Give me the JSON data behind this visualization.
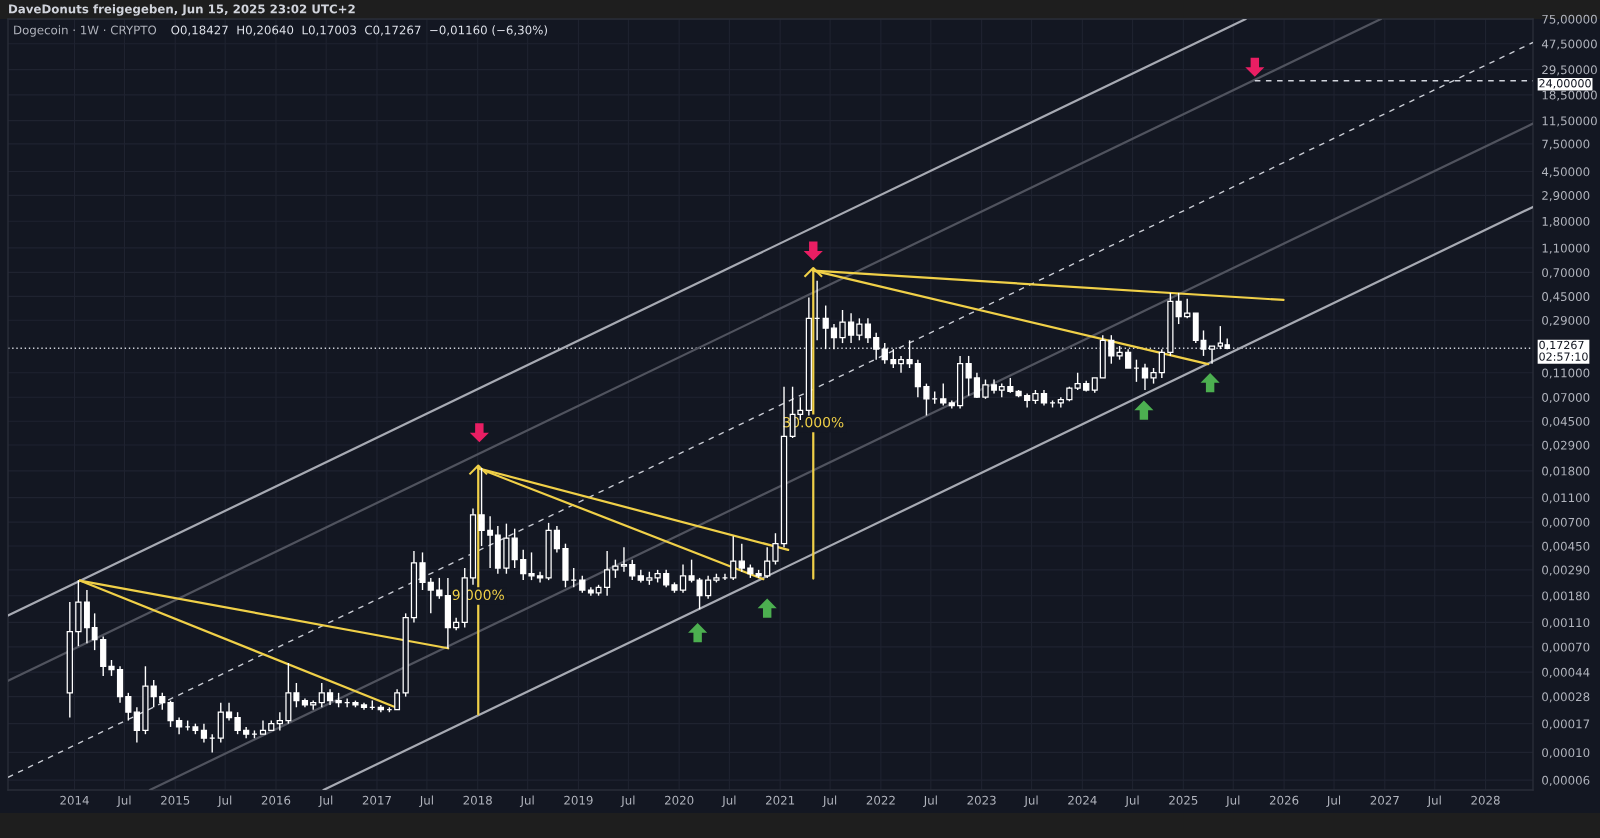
{
  "chart_data": {
    "type": "candlestick",
    "title": "Dogecoin · 1W · CRYPTO",
    "subtitle": "O0,18427  H0,20640  L0,17003  C0,17267  −0,01160 (−6,30%)",
    "color": "#ffffff",
    "log": true,
    "grid": true,
    "xlim": [
      "2013-05-05",
      "2028-06-21"
    ],
    "ylim": [
      5e-05,
      75
    ],
    "xticks": [
      {
        "value": "2014-01-01",
        "label": "2014"
      },
      {
        "value": "2014-07-01",
        "label": "Jul"
      },
      {
        "value": "2015-01-01",
        "label": "2015"
      },
      {
        "value": "2015-07-01",
        "label": "Jul"
      },
      {
        "value": "2016-01-01",
        "label": "2016"
      },
      {
        "value": "2016-07-01",
        "label": "Jul"
      },
      {
        "value": "2017-01-01",
        "label": "2017"
      },
      {
        "value": "2017-07-01",
        "label": "Jul"
      },
      {
        "value": "2018-01-01",
        "label": "2018"
      },
      {
        "value": "2018-07-01",
        "label": "Jul"
      },
      {
        "value": "2019-01-01",
        "label": "2019"
      },
      {
        "value": "2019-07-01",
        "label": "Jul"
      },
      {
        "value": "2020-01-01",
        "label": "2020"
      },
      {
        "value": "2020-07-01",
        "label": "Jul"
      },
      {
        "value": "2021-01-01",
        "label": "2021"
      },
      {
        "value": "2021-07-01",
        "label": "Jul"
      },
      {
        "value": "2022-01-01",
        "label": "2022"
      },
      {
        "value": "2022-07-01",
        "label": "Jul"
      },
      {
        "value": "2023-01-01",
        "label": "2023"
      },
      {
        "value": "2023-07-01",
        "label": "Jul"
      },
      {
        "value": "2024-01-01",
        "label": "2024"
      },
      {
        "value": "2024-07-01",
        "label": "Jul"
      },
      {
        "value": "2025-01-01",
        "label": "2025"
      },
      {
        "value": "2025-07-01",
        "label": "Jul"
      },
      {
        "value": "2026-01-01",
        "label": "2026"
      },
      {
        "value": "2026-07-01",
        "label": "Jul"
      },
      {
        "value": "2027-01-01",
        "label": "2027"
      },
      {
        "value": "2027-07-01",
        "label": "Jul"
      },
      {
        "value": "2028-01-01",
        "label": "2028"
      }
    ],
    "yticks": [
      {
        "value": 75,
        "label": "75,00000"
      },
      {
        "value": 47.5,
        "label": "47,50000"
      },
      {
        "value": 29.5,
        "label": "29,50000"
      },
      {
        "value": 18.5,
        "label": "18,50000"
      },
      {
        "value": 11.5,
        "label": "11,50000"
      },
      {
        "value": 7.5,
        "label": "7,50000"
      },
      {
        "value": 4.5,
        "label": "4,50000"
      },
      {
        "value": 2.9,
        "label": "2,90000"
      },
      {
        "value": 1.8,
        "label": "1,80000"
      },
      {
        "value": 1.1,
        "label": "1,10000"
      },
      {
        "value": 0.7,
        "label": "0,70000"
      },
      {
        "value": 0.45,
        "label": "0,45000"
      },
      {
        "value": 0.29,
        "label": "0,29000"
      },
      {
        "value": 0.11,
        "label": "0,11000"
      },
      {
        "value": 0.07,
        "label": "0,07000"
      },
      {
        "value": 0.045,
        "label": "0,04500"
      },
      {
        "value": 0.029,
        "label": "0,02900"
      },
      {
        "value": 0.018,
        "label": "0,01800"
      },
      {
        "value": 0.011,
        "label": "0,01100"
      },
      {
        "value": 0.007,
        "label": "0,00700"
      },
      {
        "value": 0.0045,
        "label": "0,00450"
      },
      {
        "value": 0.0029,
        "label": "0,00290"
      },
      {
        "value": 0.0018,
        "label": "0,00180"
      },
      {
        "value": 0.0011,
        "label": "0,00110"
      },
      {
        "value": 0.0007,
        "label": "0,00070"
      },
      {
        "value": 0.00044,
        "label": "0,00044"
      },
      {
        "value": 0.00028,
        "label": "0,00028"
      },
      {
        "value": 0.00017,
        "label": "0,00017"
      },
      {
        "value": 0.0001,
        "label": "0,00010"
      },
      {
        "value": 6e-05,
        "label": "0,00006"
      }
    ],
    "x": [
      "2013-12-15",
      "2014-01-15",
      "2014-02-15",
      "2014-03-15",
      "2014-04-15",
      "2014-05-15",
      "2014-06-15",
      "2014-07-15",
      "2014-08-15",
      "2014-09-15",
      "2014-10-15",
      "2014-11-15",
      "2014-12-15",
      "2015-01-15",
      "2015-02-15",
      "2015-03-15",
      "2015-04-15",
      "2015-05-15",
      "2015-06-15",
      "2015-07-15",
      "2015-08-15",
      "2015-09-15",
      "2015-10-15",
      "2015-11-15",
      "2015-12-15",
      "2016-01-15",
      "2016-02-15",
      "2016-03-15",
      "2016-04-15",
      "2016-05-15",
      "2016-06-15",
      "2016-07-15",
      "2016-08-15",
      "2016-09-15",
      "2016-10-15",
      "2016-11-15",
      "2016-12-15",
      "2017-01-15",
      "2017-02-15",
      "2017-03-15",
      "2017-04-15",
      "2017-05-15",
      "2017-06-15",
      "2017-07-15",
      "2017-08-15",
      "2017-09-15",
      "2017-10-15",
      "2017-11-15",
      "2017-12-15",
      "2018-01-15",
      "2018-02-15",
      "2018-03-15",
      "2018-04-15",
      "2018-05-15",
      "2018-06-15",
      "2018-07-15",
      "2018-08-15",
      "2018-09-15",
      "2018-10-15",
      "2018-11-15",
      "2018-12-15",
      "2019-01-15",
      "2019-02-15",
      "2019-03-15",
      "2019-04-15",
      "2019-05-15",
      "2019-06-15",
      "2019-07-15",
      "2019-08-15",
      "2019-09-15",
      "2019-10-15",
      "2019-11-15",
      "2019-12-15",
      "2020-01-15",
      "2020-02-15",
      "2020-03-15",
      "2020-04-15",
      "2020-05-15",
      "2020-06-15",
      "2020-07-15",
      "2020-08-15",
      "2020-09-15",
      "2020-10-15",
      "2020-11-15",
      "2020-12-15",
      "2021-01-15",
      "2021-02-15",
      "2021-03-15",
      "2021-04-15",
      "2021-05-15",
      "2021-06-15",
      "2021-07-15",
      "2021-08-15",
      "2021-09-15",
      "2021-10-15",
      "2021-11-15",
      "2021-12-15",
      "2022-01-15",
      "2022-02-15",
      "2022-03-15",
      "2022-04-15",
      "2022-05-15",
      "2022-06-15",
      "2022-07-15",
      "2022-08-15",
      "2022-09-15",
      "2022-10-15",
      "2022-11-15",
      "2022-12-15",
      "2023-01-15",
      "2023-02-15",
      "2023-03-15",
      "2023-04-15",
      "2023-05-15",
      "2023-06-15",
      "2023-07-15",
      "2023-08-15",
      "2023-09-15",
      "2023-10-15",
      "2023-11-15",
      "2023-12-15",
      "2024-01-15",
      "2024-02-15",
      "2024-03-15",
      "2024-04-15",
      "2024-05-15",
      "2024-06-15",
      "2024-07-15",
      "2024-08-15",
      "2024-09-15",
      "2024-10-15",
      "2024-11-15",
      "2024-12-15",
      "2025-01-15",
      "2025-02-15",
      "2025-03-15",
      "2025-04-15",
      "2025-05-15",
      "2025-06-09"
    ],
    "ohlc": [
      [
        0.0003,
        0.0016,
        0.00019,
        0.00093
      ],
      [
        0.00093,
        0.0024,
        0.00071,
        0.0016
      ],
      [
        0.0016,
        0.002,
        0.00075,
        0.001
      ],
      [
        0.001,
        0.0013,
        0.00066,
        0.0008
      ],
      [
        0.0008,
        0.00085,
        0.00041,
        0.00049
      ],
      [
        0.00049,
        0.00055,
        0.00041,
        0.00046
      ],
      [
        0.00046,
        0.00049,
        0.00025,
        0.00028
      ],
      [
        0.00028,
        0.0003,
        0.00018,
        0.00021
      ],
      [
        0.00021,
        0.00023,
        0.00012,
        0.00015
      ],
      [
        0.00015,
        0.00049,
        0.00014,
        0.00034
      ],
      [
        0.00034,
        0.00038,
        0.00023,
        0.00028
      ],
      [
        0.00028,
        0.0003,
        0.00022,
        0.00025
      ],
      [
        0.00025,
        0.00026,
        0.00016,
        0.00018
      ],
      [
        0.00018,
        0.00019,
        0.00014,
        0.00016
      ],
      [
        0.00016,
        0.00018,
        0.00015,
        0.00016
      ],
      [
        0.00016,
        0.00017,
        0.00014,
        0.00015
      ],
      [
        0.00015,
        0.00017,
        0.00012,
        0.00013
      ],
      [
        0.00013,
        0.00014,
        0.0001,
        0.00013
      ],
      [
        0.00013,
        0.00025,
        0.00012,
        0.00021
      ],
      [
        0.00021,
        0.00025,
        0.00018,
        0.00019
      ],
      [
        0.00019,
        0.00021,
        0.00014,
        0.00015
      ],
      [
        0.00015,
        0.00016,
        0.00013,
        0.00014
      ],
      [
        0.00014,
        0.00015,
        0.00013,
        0.00014
      ],
      [
        0.00014,
        0.00018,
        0.00014,
        0.00015
      ],
      [
        0.00015,
        0.00018,
        0.00015,
        0.00017
      ],
      [
        0.00017,
        0.00021,
        0.00015,
        0.00018
      ],
      [
        0.00018,
        0.00052,
        0.00017,
        0.0003
      ],
      [
        0.0003,
        0.00036,
        0.00023,
        0.00026
      ],
      [
        0.00026,
        0.00027,
        0.00023,
        0.00024
      ],
      [
        0.00024,
        0.00026,
        0.00022,
        0.00025
      ],
      [
        0.00025,
        0.00036,
        0.00023,
        0.0003
      ],
      [
        0.0003,
        0.00032,
        0.00024,
        0.00026
      ],
      [
        0.00026,
        0.0003,
        0.00023,
        0.00025
      ],
      [
        0.00025,
        0.00027,
        0.00023,
        0.00025
      ],
      [
        0.00025,
        0.00026,
        0.00023,
        0.00024
      ],
      [
        0.00024,
        0.00025,
        0.00022,
        0.00023
      ],
      [
        0.00023,
        0.00026,
        0.00022,
        0.00023
      ],
      [
        0.00023,
        0.00024,
        0.00021,
        0.00022
      ],
      [
        0.00022,
        0.00023,
        0.00021,
        0.00022
      ],
      [
        0.00022,
        0.00032,
        0.00022,
        0.0003
      ],
      [
        0.0003,
        0.0013,
        0.00028,
        0.0012
      ],
      [
        0.0012,
        0.0041,
        0.0011,
        0.0033
      ],
      [
        0.0033,
        0.004,
        0.002,
        0.0023
      ],
      [
        0.0023,
        0.0025,
        0.0013,
        0.002
      ],
      [
        0.002,
        0.0025,
        0.0017,
        0.0018
      ],
      [
        0.0018,
        0.0025,
        0.00068,
        0.001
      ],
      [
        0.001,
        0.0012,
        0.00095,
        0.0011
      ],
      [
        0.0011,
        0.003,
        0.001,
        0.0025
      ],
      [
        0.0025,
        0.009,
        0.0022,
        0.008
      ],
      [
        0.008,
        0.019,
        0.0045,
        0.006
      ],
      [
        0.006,
        0.0078,
        0.003,
        0.0055
      ],
      [
        0.0055,
        0.0065,
        0.0027,
        0.003
      ],
      [
        0.003,
        0.0068,
        0.0027,
        0.0052
      ],
      [
        0.0052,
        0.0062,
        0.003,
        0.0035
      ],
      [
        0.0035,
        0.0042,
        0.0024,
        0.0027
      ],
      [
        0.0027,
        0.004,
        0.0024,
        0.0026
      ],
      [
        0.0026,
        0.0028,
        0.0023,
        0.0025
      ],
      [
        0.0025,
        0.0069,
        0.0024,
        0.006
      ],
      [
        0.006,
        0.0065,
        0.004,
        0.0043
      ],
      [
        0.0043,
        0.0047,
        0.0021,
        0.0024
      ],
      [
        0.0024,
        0.003,
        0.0021,
        0.0024
      ],
      [
        0.0024,
        0.0026,
        0.0019,
        0.002
      ],
      [
        0.002,
        0.0021,
        0.0018,
        0.0019
      ],
      [
        0.0019,
        0.0022,
        0.0018,
        0.0021
      ],
      [
        0.0021,
        0.0041,
        0.0018,
        0.0029
      ],
      [
        0.0029,
        0.0035,
        0.0025,
        0.0031
      ],
      [
        0.0031,
        0.0044,
        0.0028,
        0.0032
      ],
      [
        0.0032,
        0.0035,
        0.0024,
        0.0026
      ],
      [
        0.0026,
        0.0029,
        0.0023,
        0.0024
      ],
      [
        0.0024,
        0.0028,
        0.0022,
        0.0025
      ],
      [
        0.0025,
        0.0029,
        0.0023,
        0.0027
      ],
      [
        0.0027,
        0.0029,
        0.0021,
        0.0022
      ],
      [
        0.0022,
        0.0023,
        0.0019,
        0.002
      ],
      [
        0.002,
        0.0032,
        0.0019,
        0.0026
      ],
      [
        0.0026,
        0.0035,
        0.0023,
        0.0024
      ],
      [
        0.0024,
        0.0025,
        0.0014,
        0.0018
      ],
      [
        0.0018,
        0.0026,
        0.0017,
        0.0024
      ],
      [
        0.0024,
        0.0027,
        0.0023,
        0.0025
      ],
      [
        0.0025,
        0.0027,
        0.0024,
        0.0025
      ],
      [
        0.0025,
        0.0054,
        0.0024,
        0.0034
      ],
      [
        0.0034,
        0.0047,
        0.0028,
        0.003
      ],
      [
        0.003,
        0.0032,
        0.0025,
        0.0027
      ],
      [
        0.0027,
        0.0029,
        0.0025,
        0.0026
      ],
      [
        0.0026,
        0.0044,
        0.0025,
        0.0034
      ],
      [
        0.0034,
        0.0057,
        0.0032,
        0.0047
      ],
      [
        0.0047,
        0.085,
        0.0044,
        0.034
      ],
      [
        0.034,
        0.085,
        0.033,
        0.051
      ],
      [
        0.051,
        0.07,
        0.046,
        0.055
      ],
      [
        0.055,
        0.44,
        0.05,
        0.3
      ],
      [
        0.3,
        0.6,
        0.2,
        0.3
      ],
      [
        0.3,
        0.38,
        0.17,
        0.25
      ],
      [
        0.25,
        0.27,
        0.17,
        0.21
      ],
      [
        0.21,
        0.35,
        0.19,
        0.28
      ],
      [
        0.28,
        0.33,
        0.19,
        0.22
      ],
      [
        0.22,
        0.3,
        0.2,
        0.27
      ],
      [
        0.27,
        0.3,
        0.19,
        0.21
      ],
      [
        0.21,
        0.23,
        0.14,
        0.17
      ],
      [
        0.17,
        0.19,
        0.13,
        0.14
      ],
      [
        0.14,
        0.17,
        0.12,
        0.13
      ],
      [
        0.13,
        0.15,
        0.11,
        0.14
      ],
      [
        0.14,
        0.2,
        0.12,
        0.13
      ],
      [
        0.13,
        0.14,
        0.07,
        0.085
      ],
      [
        0.085,
        0.09,
        0.05,
        0.068
      ],
      [
        0.068,
        0.078,
        0.062,
        0.068
      ],
      [
        0.068,
        0.09,
        0.06,
        0.063
      ],
      [
        0.063,
        0.066,
        0.057,
        0.06
      ],
      [
        0.06,
        0.15,
        0.057,
        0.13
      ],
      [
        0.13,
        0.15,
        0.072,
        0.1
      ],
      [
        0.1,
        0.11,
        0.069,
        0.07
      ],
      [
        0.07,
        0.097,
        0.068,
        0.088
      ],
      [
        0.088,
        0.097,
        0.075,
        0.08
      ],
      [
        0.08,
        0.09,
        0.07,
        0.085
      ],
      [
        0.085,
        0.1,
        0.076,
        0.078
      ],
      [
        0.078,
        0.08,
        0.07,
        0.072
      ],
      [
        0.072,
        0.075,
        0.058,
        0.066
      ],
      [
        0.066,
        0.08,
        0.062,
        0.075
      ],
      [
        0.075,
        0.08,
        0.06,
        0.063
      ],
      [
        0.063,
        0.066,
        0.058,
        0.063
      ],
      [
        0.063,
        0.07,
        0.058,
        0.067
      ],
      [
        0.067,
        0.085,
        0.065,
        0.083
      ],
      [
        0.083,
        0.11,
        0.08,
        0.09
      ],
      [
        0.09,
        0.095,
        0.078,
        0.08
      ],
      [
        0.08,
        0.1,
        0.076,
        0.1
      ],
      [
        0.1,
        0.22,
        0.1,
        0.2
      ],
      [
        0.2,
        0.22,
        0.13,
        0.15
      ],
      [
        0.15,
        0.18,
        0.14,
        0.16
      ],
      [
        0.16,
        0.17,
        0.12,
        0.12
      ],
      [
        0.12,
        0.14,
        0.093,
        0.12
      ],
      [
        0.12,
        0.13,
        0.08,
        0.1
      ],
      [
        0.1,
        0.12,
        0.09,
        0.11
      ],
      [
        0.11,
        0.17,
        0.1,
        0.16
      ],
      [
        0.16,
        0.48,
        0.15,
        0.41
      ],
      [
        0.41,
        0.48,
        0.27,
        0.31
      ],
      [
        0.31,
        0.43,
        0.3,
        0.33
      ],
      [
        0.33,
        0.33,
        0.19,
        0.2
      ],
      [
        0.2,
        0.24,
        0.15,
        0.17
      ],
      [
        0.17,
        0.18,
        0.13,
        0.18
      ],
      [
        0.18,
        0.26,
        0.17,
        0.19
      ],
      [
        0.18427,
        0.2064,
        0.17003,
        0.17267
      ]
    ],
    "series": [
      {
        "type": "line",
        "color": "#a7aab3",
        "x": [
          "2013-05-05",
          "2025-08-15"
        ],
        "values": [
          0.00125,
          75
        ]
      },
      {
        "type": "line",
        "color": "#50535e",
        "x": [
          "2013-05-05",
          "2026-12-18"
        ],
        "values": [
          0.000375,
          75
        ]
      },
      {
        "type": "line",
        "color": "#c9ccd4",
        "line_style": "dashed",
        "x": [
          "2013-05-05",
          "2028-06-21"
        ],
        "values": [
          6.32e-05,
          48.7
        ]
      },
      {
        "type": "line",
        "color": "#50535e",
        "x": [
          "2014-10-01",
          "2028-06-21"
        ],
        "values": [
          5e-05,
          10.9
        ]
      },
      {
        "type": "line",
        "color": "#a7aab3",
        "x": [
          "2016-06-21",
          "2028-06-21"
        ],
        "values": [
          5e-05,
          2.34
        ]
      },
      {
        "type": "line",
        "color": "#f0d048",
        "x": [
          "2014-01-20",
          "2017-09-16"
        ],
        "values": [
          0.00238,
          0.000683
        ]
      },
      {
        "type": "line",
        "color": "#f0d048",
        "x": [
          "2014-01-20",
          "2017-03-18"
        ],
        "values": [
          0.00238,
          0.000226
        ]
      },
      {
        "type": "line",
        "color": "#f0d048",
        "x": [
          "2018-01-03",
          "2021-01-30"
        ],
        "values": [
          0.0189,
          0.00419
        ]
      },
      {
        "type": "line",
        "color": "#f0d048",
        "x": [
          "2018-01-03",
          "2020-11-01"
        ],
        "values": [
          0.0189,
          0.00244
        ]
      },
      {
        "type": "line",
        "color": "#f0d048",
        "x": [
          "2021-05-01",
          "2025-12-30"
        ],
        "values": [
          0.723,
          0.421
        ]
      },
      {
        "type": "line",
        "color": "#f0d048",
        "x": [
          "2021-05-01",
          "2025-04-01"
        ],
        "values": [
          0.723,
          0.129
        ]
      },
      {
        "type": "line",
        "color": "#f0d048",
        "x": [
          "2018-01-03",
          "2018-01-03"
        ],
        "values": [
          0.000202,
          0.0189
        ]
      },
      {
        "type": "line",
        "color": "#f0d048",
        "x": [
          "2021-05-01",
          "2021-05-01"
        ],
        "values": [
          0.00247,
          0.723
        ]
      },
      {
        "type": "line",
        "color": "#d1d4dc",
        "line_style": "dashed",
        "x": [
          "2025-09-17",
          "2028-06-21"
        ],
        "values": [
          24,
          24
        ],
        "value_labels": [
          null,
          "24,00000"
        ]
      },
      {
        "type": "scatter",
        "marker": "triangle_down",
        "color": "#e91e63",
        "x": [
          "2018-01-07",
          "2021-05-01",
          "2025-09-17"
        ],
        "values": [
          0.0364,
          1.04,
          30.8
        ]
      },
      {
        "type": "scatter",
        "marker": "triangle_up",
        "color": "#4caf50",
        "x": [
          "2020-03-08",
          "2020-11-15",
          "2024-08-11",
          "2025-04-08"
        ],
        "values": [
          0.000911,
          0.00143,
          0.0552,
          0.0916
        ]
      }
    ],
    "ref_lines": [
      {
        "axis": "y",
        "value": 0.17267,
        "label": "0,17267\n02:57:10",
        "color": "#d1d4dc",
        "line_style": "dotted"
      }
    ],
    "annotations": [
      "DaveDonuts freigegeben, Jun 15, 2025 23:02 UTC+2",
      {
        "text": "9.000%",
        "x": "2018-01-03",
        "y": 0.00179
      },
      {
        "text": "30.000%",
        "x": "2021-05-01",
        "y": 0.0432
      }
    ]
  }
}
